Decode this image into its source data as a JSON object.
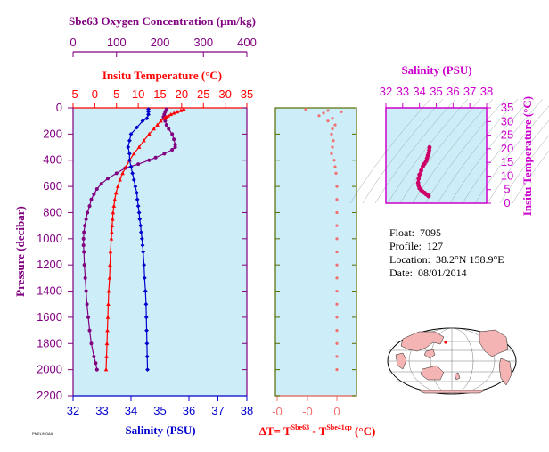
{
  "info": {
    "float_label": "Float:",
    "float_value": "7095",
    "profile_label": "Profile:",
    "profile_value": "127",
    "location_label": "Location:",
    "location_value": "38.2°N  158.9°E",
    "date_label": "Date:",
    "date_value": "08/01/2014"
  },
  "footer_stamp": "PMEL/NOAA",
  "colors": {
    "oxygen": "#800080",
    "temperature": "#ff0000",
    "salinity": "#0000cc",
    "delta_t": "#f07070",
    "plot_bg": "#cdeef8",
    "ts_axis": "#cc00cc",
    "olive": "#556b00"
  },
  "chart_data": [
    {
      "type": "line",
      "title": "",
      "ylabel": "Pressure (decibar)",
      "ylim": [
        2200,
        0
      ],
      "yticks": [
        "0",
        "200",
        "400",
        "600",
        "800",
        "1000",
        "1200",
        "1400",
        "1600",
        "1800",
        "2000",
        "2200"
      ],
      "axes": {
        "oxygen": {
          "label": "Sbe63 Oxygen Concentration (μm/kg)",
          "ticks": [
            "0",
            "100",
            "200",
            "300",
            "400"
          ],
          "range": [
            0,
            400
          ]
        },
        "temperature": {
          "label": "Insitu Temperature (°C)",
          "ticks": [
            "-5",
            "0",
            "5",
            "10",
            "15",
            "20",
            "25",
            "30",
            "35"
          ],
          "range": [
            -5,
            35
          ]
        },
        "salinity": {
          "label": "Salinity (PSU)",
          "ticks": [
            "32",
            "33",
            "34",
            "35",
            "36",
            "37",
            "38"
          ],
          "range": [
            32,
            38
          ]
        }
      },
      "series": [
        {
          "name": "oxygen",
          "pressure": [
            10,
            30,
            50,
            70,
            100,
            130,
            160,
            200,
            240,
            280,
            300,
            320,
            350,
            380,
            400,
            430,
            460,
            500,
            540,
            580,
            620,
            660,
            700,
            750,
            800,
            850,
            900,
            950,
            1000,
            1050,
            1100,
            1200,
            1300,
            1400,
            1500,
            1600,
            1700,
            1800,
            1900,
            1950,
            2000
          ],
          "values": [
            215,
            212,
            210,
            208,
            212,
            215,
            220,
            228,
            232,
            235,
            235,
            228,
            210,
            190,
            175,
            150,
            120,
            100,
            80,
            65,
            55,
            48,
            42,
            38,
            33,
            30,
            27,
            25,
            24,
            24,
            25,
            26,
            28,
            30,
            32,
            35,
            38,
            42,
            48,
            52,
            55
          ]
        },
        {
          "name": "temperature",
          "pressure": [
            10,
            20,
            30,
            40,
            50,
            60,
            70,
            80,
            100,
            130,
            160,
            200,
            250,
            300,
            350,
            400,
            450,
            500,
            550,
            600,
            650,
            700,
            750,
            800,
            850,
            900,
            950,
            1000,
            1100,
            1200,
            1300,
            1400,
            1500,
            1600,
            1700,
            1800,
            1900,
            2000
          ],
          "values": [
            20.5,
            19.8,
            19.0,
            18.2,
            17.5,
            16.9,
            16.4,
            16.0,
            15.2,
            14.4,
            13.6,
            12.5,
            11.3,
            10.2,
            9.0,
            8.0,
            7.2,
            6.4,
            5.8,
            5.3,
            4.9,
            4.6,
            4.4,
            4.2,
            4.1,
            4.0,
            3.9,
            3.8,
            3.6,
            3.5,
            3.4,
            3.2,
            3.1,
            3.0,
            2.9,
            2.8,
            2.7,
            2.6
          ]
        },
        {
          "name": "salinity",
          "pressure": [
            10,
            30,
            50,
            80,
            100,
            150,
            200,
            250,
            300,
            350,
            400,
            450,
            500,
            550,
            600,
            650,
            700,
            750,
            800,
            850,
            900,
            950,
            1000,
            1050,
            1100,
            1200,
            1300,
            1400,
            1500,
            1600,
            1700,
            1800,
            1900,
            2000
          ],
          "values": [
            34.6,
            34.6,
            34.6,
            34.55,
            34.4,
            34.2,
            34.0,
            33.95,
            33.9,
            33.95,
            33.95,
            34.0,
            34.05,
            34.1,
            34.15,
            34.2,
            34.22,
            34.25,
            34.28,
            34.3,
            34.33,
            34.35,
            34.38,
            34.4,
            34.42,
            34.45,
            34.47,
            34.5,
            34.52,
            34.53,
            34.54,
            34.55,
            34.56,
            34.57
          ]
        }
      ]
    },
    {
      "type": "line",
      "title": "",
      "xlabel": "ΔT= T^Sbe63 - T^Sbe41cp (°C)",
      "xlabel_parts": {
        "prefix": "ΔT= T",
        "sup1": "Sbe63",
        "mid": " - T",
        "sup2": "Sbe41cp",
        "suffix": " (°C)"
      },
      "xticks": [
        "-0",
        "-0",
        "0"
      ],
      "ylim": [
        2200,
        0
      ],
      "series": [
        {
          "name": "delta_t",
          "pressure": [
            10,
            20,
            30,
            40,
            60,
            80,
            100,
            130,
            160,
            200,
            250,
            300,
            350,
            400,
            450,
            500,
            600,
            700,
            800,
            900,
            1000,
            1100,
            1200,
            1300,
            1400,
            1500,
            1600,
            1700,
            1800,
            1900,
            2000
          ],
          "values": [
            -0.35,
            -0.1,
            0.05,
            -0.15,
            -0.2,
            -0.05,
            -0.1,
            -0.02,
            -0.05,
            -0.06,
            -0.04,
            -0.05,
            -0.06,
            -0.03,
            -0.02,
            -0.01,
            0,
            0,
            0,
            0,
            0,
            0,
            0,
            0,
            0,
            0,
            0,
            0,
            0,
            0,
            0
          ]
        }
      ]
    },
    {
      "type": "scatter",
      "title": "",
      "xlabel": "Salinity (PSU)",
      "ylabel": "Insitu Temperature (°C)",
      "xticks": [
        "32",
        "33",
        "34",
        "35",
        "36",
        "37",
        "38"
      ],
      "yticks": [
        "0",
        "5",
        "10",
        "15",
        "20",
        "25",
        "30",
        "35"
      ],
      "xlim": [
        32,
        38
      ],
      "ylim": [
        0,
        35
      ],
      "series": [
        {
          "name": "t-s",
          "x": [
            34.6,
            34.58,
            34.55,
            34.5,
            34.45,
            34.4,
            34.3,
            34.2,
            34.1,
            34.0,
            33.95,
            33.92,
            33.95,
            34.0,
            34.1,
            34.2,
            34.3,
            34.4,
            34.5,
            34.55
          ],
          "y": [
            20.5,
            19.5,
            18.5,
            17.5,
            16.5,
            15.5,
            14.5,
            13.5,
            12.0,
            10.5,
            9.0,
            7.5,
            6.5,
            5.5,
            4.8,
            4.2,
            3.8,
            3.3,
            2.9,
            2.6
          ]
        }
      ]
    }
  ]
}
